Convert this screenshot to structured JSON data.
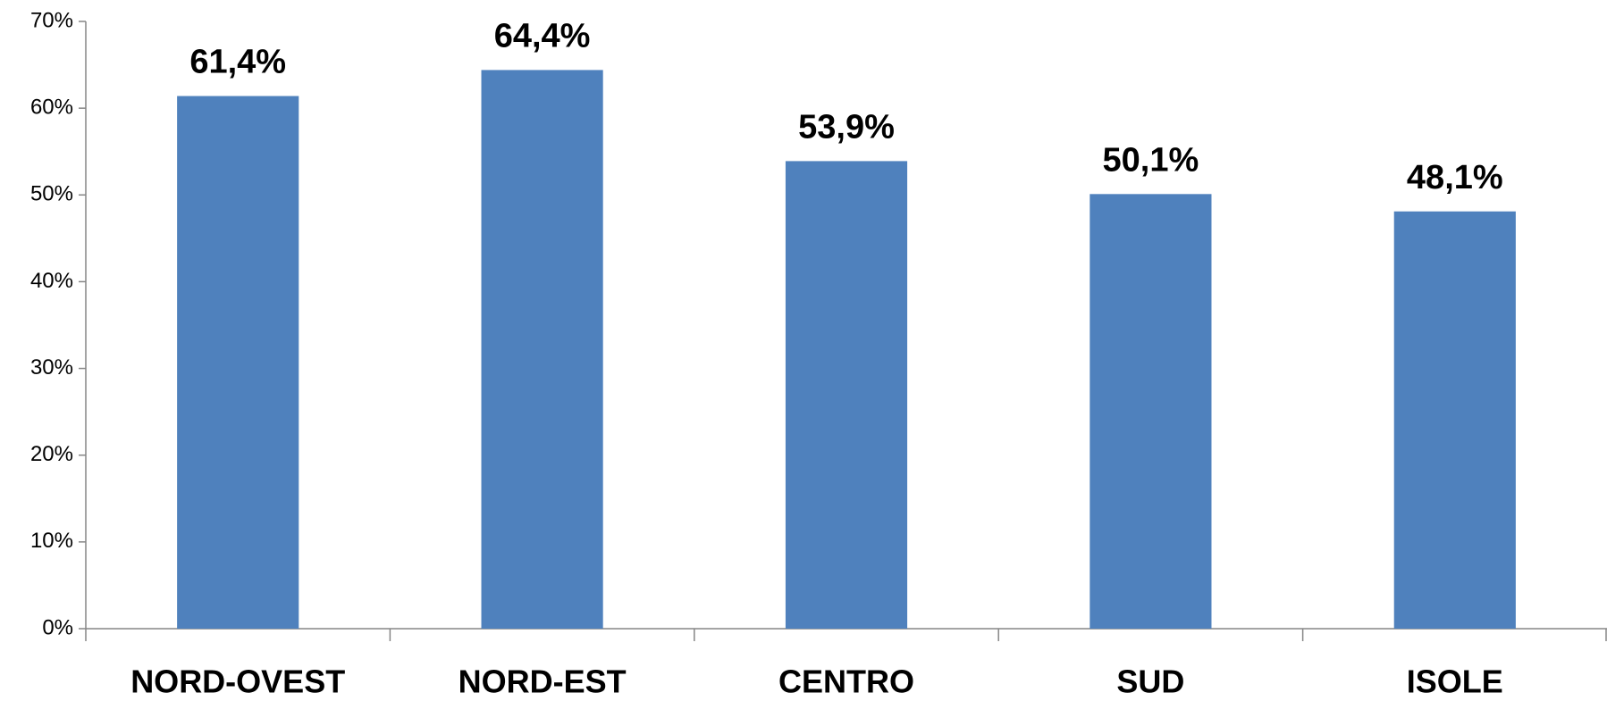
{
  "chart_data": {
    "type": "bar",
    "categories": [
      "NORD-OVEST",
      "NORD-EST",
      "CENTRO",
      "SUD",
      "ISOLE"
    ],
    "values": [
      61.4,
      64.4,
      53.9,
      50.1,
      48.1
    ],
    "value_labels": [
      "61,4%",
      "64,4%",
      "53,9%",
      "50,1%",
      "48,1%"
    ],
    "color": "#4f81bd",
    "ylim": [
      0,
      70
    ],
    "yticks": [
      {
        "value": 0,
        "label": "0%"
      },
      {
        "value": 10,
        "label": "10%"
      },
      {
        "value": 20,
        "label": "20%"
      },
      {
        "value": 30,
        "label": "30%"
      },
      {
        "value": 40,
        "label": "40%"
      },
      {
        "value": 50,
        "label": "50%"
      },
      {
        "value": 60,
        "label": "60%"
      },
      {
        "value": 70,
        "label": "70%"
      }
    ],
    "grid": false
  }
}
